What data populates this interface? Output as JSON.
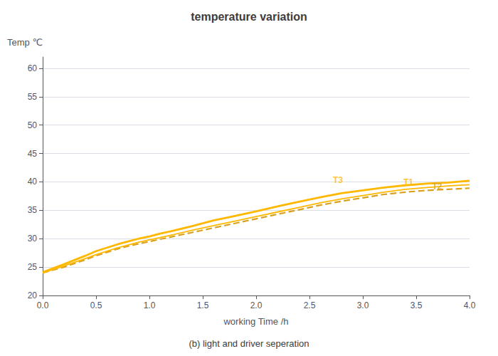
{
  "chart_data": {
    "type": "line",
    "title": "temperature variation",
    "subtitle": "(b) light and driver seperation",
    "xlabel": "working Time /h",
    "ylabel": "Temp ℃",
    "xlim": [
      0,
      4
    ],
    "ylim": [
      20,
      62
    ],
    "xticks": [
      {
        "value": 0,
        "label": "0.0"
      },
      0.5,
      {
        "value": 1.0,
        "label": "1.0"
      },
      1.5,
      {
        "value": 2.0,
        "label": "2.0"
      },
      2.5,
      {
        "value": 3.0,
        "label": "3.0"
      },
      3.5,
      {
        "value": 4.0,
        "label": "4.0"
      }
    ],
    "yticks": [
      20,
      25,
      30,
      35,
      40,
      45,
      50,
      55,
      60
    ],
    "grid": "y",
    "series": [
      {
        "color": "#FFB800",
        "line_style": "solid",
        "x": [
          0,
          0.2,
          0.4,
          0.5,
          0.6,
          0.7,
          0.8,
          0.9,
          1.0,
          1.1,
          1.2,
          1.4,
          1.6,
          1.8,
          2.0,
          2.2,
          2.4,
          2.6,
          2.8,
          3.0,
          3.2,
          3.4,
          3.6,
          3.8,
          4.0
        ],
        "values": [
          24.1,
          25.5,
          27.0,
          27.8,
          28.4,
          29.0,
          29.5,
          30.0,
          30.4,
          30.9,
          31.3,
          32.2,
          33.2,
          34.0,
          34.8,
          35.7,
          36.5,
          37.3,
          38.0,
          38.5,
          39.0,
          39.4,
          39.7,
          39.9,
          40.2
        ]
      },
      {
        "color": "#FFB800",
        "line_style": "solid",
        "x": [
          0,
          0.2,
          0.4,
          0.5,
          0.6,
          0.7,
          0.8,
          0.9,
          1.0,
          1.1,
          1.2,
          1.4,
          1.6,
          1.8,
          2.0,
          2.2,
          2.4,
          2.6,
          2.8,
          3.0,
          3.2,
          3.4,
          3.6,
          3.8,
          4.0
        ],
        "values": [
          24.0,
          25.2,
          26.5,
          27.2,
          27.8,
          28.4,
          28.9,
          29.4,
          29.8,
          30.2,
          30.6,
          31.5,
          32.3,
          33.1,
          33.9,
          34.7,
          35.5,
          36.3,
          37.0,
          37.6,
          38.2,
          38.7,
          39.0,
          39.3,
          39.5
        ]
      },
      {
        "color": "#DAA020",
        "line_style": "dashed",
        "x": [
          0,
          0.2,
          0.4,
          0.5,
          0.6,
          0.7,
          0.8,
          0.9,
          1.0,
          1.1,
          1.2,
          1.4,
          1.6,
          1.8,
          2.0,
          2.2,
          2.4,
          2.6,
          2.8,
          3.0,
          3.2,
          3.4,
          3.6,
          3.8,
          4.0
        ],
        "values": [
          24.0,
          25.0,
          26.3,
          27.0,
          27.6,
          28.2,
          28.7,
          29.1,
          29.5,
          29.9,
          30.3,
          31.1,
          31.9,
          32.7,
          33.5,
          34.3,
          35.1,
          35.9,
          36.6,
          37.2,
          37.8,
          38.2,
          38.5,
          38.7,
          38.9
        ]
      }
    ],
    "annotations": [
      {
        "text": "T3",
        "x": 2.72,
        "y": 39.6,
        "color": "#FFB800"
      },
      {
        "text": "T1",
        "x": 3.38,
        "y": 39.15,
        "color": "#FFB800"
      },
      {
        "text": "T2",
        "x": 3.65,
        "y": 38.4,
        "color": "#DAA020"
      }
    ]
  }
}
